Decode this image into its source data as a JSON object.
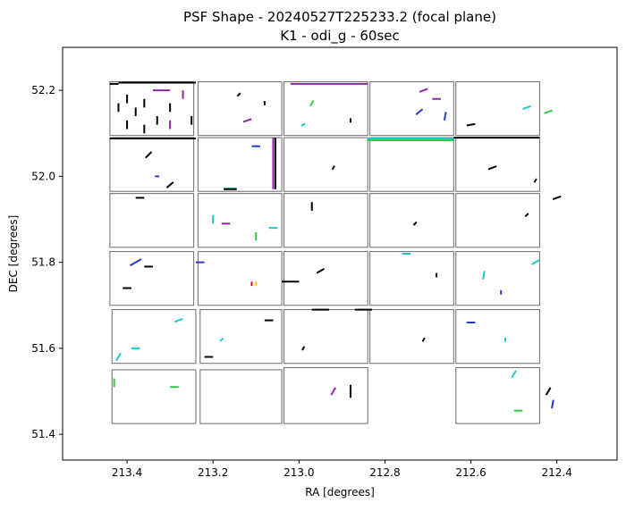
{
  "chart_data": {
    "type": "scatter",
    "title_line1": "PSF Shape - 20240527T225233.2 (focal plane)",
    "title_line2": "K1 - odi_g - 60sec",
    "xlabel": "RA [degrees]",
    "ylabel": "DEC [degrees]",
    "xlim": [
      213.55,
      212.26
    ],
    "ylim": [
      51.34,
      52.3
    ],
    "x_axis_inverted": true,
    "x_ticks": [
      213.4,
      213.2,
      213.0,
      212.8,
      212.6,
      212.4
    ],
    "x_tick_labels": [
      "213.4",
      "213.2",
      "213.0",
      "212.8",
      "212.6",
      "212.4"
    ],
    "y_ticks": [
      51.4,
      51.6,
      51.8,
      52.0,
      52.2
    ],
    "y_tick_labels": [
      "51.4",
      "51.6",
      "51.8",
      "52.0",
      "52.2"
    ],
    "grid": false,
    "legend": "none",
    "chips": [
      {
        "ra_min": 213.245,
        "ra_max": 213.44,
        "dec_min": 52.095,
        "dec_max": 52.22
      },
      {
        "ra_min": 213.04,
        "ra_max": 213.235,
        "dec_min": 52.095,
        "dec_max": 52.22
      },
      {
        "ra_min": 212.84,
        "ra_max": 213.035,
        "dec_min": 52.095,
        "dec_max": 52.22
      },
      {
        "ra_min": 212.64,
        "ra_max": 212.835,
        "dec_min": 52.095,
        "dec_max": 52.22
      },
      {
        "ra_min": 212.44,
        "ra_max": 212.635,
        "dec_min": 52.095,
        "dec_max": 52.22
      },
      {
        "ra_min": 213.245,
        "ra_max": 213.44,
        "dec_min": 51.965,
        "dec_max": 52.09
      },
      {
        "ra_min": 213.04,
        "ra_max": 213.235,
        "dec_min": 51.965,
        "dec_max": 52.09
      },
      {
        "ra_min": 212.84,
        "ra_max": 213.035,
        "dec_min": 51.965,
        "dec_max": 52.09
      },
      {
        "ra_min": 212.64,
        "ra_max": 212.835,
        "dec_min": 51.965,
        "dec_max": 52.09
      },
      {
        "ra_min": 212.44,
        "ra_max": 212.635,
        "dec_min": 51.965,
        "dec_max": 52.09
      },
      {
        "ra_min": 213.245,
        "ra_max": 213.44,
        "dec_min": 51.835,
        "dec_max": 51.96
      },
      {
        "ra_min": 213.04,
        "ra_max": 213.235,
        "dec_min": 51.835,
        "dec_max": 51.96
      },
      {
        "ra_min": 212.84,
        "ra_max": 213.035,
        "dec_min": 51.835,
        "dec_max": 51.96
      },
      {
        "ra_min": 212.64,
        "ra_max": 212.835,
        "dec_min": 51.835,
        "dec_max": 51.96
      },
      {
        "ra_min": 212.44,
        "ra_max": 212.635,
        "dec_min": 51.835,
        "dec_max": 51.96
      },
      {
        "ra_min": 213.245,
        "ra_max": 213.44,
        "dec_min": 51.7,
        "dec_max": 51.825
      },
      {
        "ra_min": 213.04,
        "ra_max": 213.235,
        "dec_min": 51.7,
        "dec_max": 51.825
      },
      {
        "ra_min": 212.84,
        "ra_max": 213.035,
        "dec_min": 51.7,
        "dec_max": 51.825
      },
      {
        "ra_min": 212.64,
        "ra_max": 212.835,
        "dec_min": 51.7,
        "dec_max": 51.825
      },
      {
        "ra_min": 212.44,
        "ra_max": 212.635,
        "dec_min": 51.7,
        "dec_max": 51.825
      },
      {
        "ra_min": 213.24,
        "ra_max": 213.435,
        "dec_min": 51.565,
        "dec_max": 51.69
      },
      {
        "ra_min": 213.04,
        "ra_max": 213.23,
        "dec_min": 51.565,
        "dec_max": 51.69
      },
      {
        "ra_min": 212.84,
        "ra_max": 213.035,
        "dec_min": 51.565,
        "dec_max": 51.69
      },
      {
        "ra_min": 212.64,
        "ra_max": 212.835,
        "dec_min": 51.565,
        "dec_max": 51.69
      },
      {
        "ra_min": 212.44,
        "ra_max": 212.635,
        "dec_min": 51.565,
        "dec_max": 51.69
      },
      {
        "ra_min": 213.24,
        "ra_max": 213.435,
        "dec_min": 51.425,
        "dec_max": 51.55
      },
      {
        "ra_min": 213.04,
        "ra_max": 213.23,
        "dec_min": 51.425,
        "dec_max": 51.55
      },
      {
        "ra_min": 212.84,
        "ra_max": 213.035,
        "dec_min": 51.425,
        "dec_max": 51.555
      },
      {
        "ra_min": 212.44,
        "ra_max": 212.635,
        "dec_min": 51.425,
        "dec_max": 51.555
      }
    ],
    "segments": [
      {
        "ra": 213.43,
        "dec": 52.215,
        "len": 0.02,
        "angle": 0,
        "color": "#000000"
      },
      {
        "ra": 213.33,
        "dec": 52.218,
        "len": 0.18,
        "angle": 0,
        "color": "#000000"
      },
      {
        "ra": 213.42,
        "dec": 52.16,
        "len": 0.02,
        "angle": 90,
        "color": "#000000"
      },
      {
        "ra": 213.4,
        "dec": 52.18,
        "len": 0.02,
        "angle": 90,
        "color": "#000000"
      },
      {
        "ra": 213.38,
        "dec": 52.15,
        "len": 0.02,
        "angle": 90,
        "color": "#000000"
      },
      {
        "ra": 213.36,
        "dec": 52.17,
        "len": 0.02,
        "angle": 90,
        "color": "#000000"
      },
      {
        "ra": 213.33,
        "dec": 52.13,
        "len": 0.02,
        "angle": 90,
        "color": "#000000"
      },
      {
        "ra": 213.3,
        "dec": 52.16,
        "len": 0.02,
        "angle": 90,
        "color": "#000000"
      },
      {
        "ra": 213.27,
        "dec": 52.19,
        "len": 0.02,
        "angle": 90,
        "color": "#8e24aa"
      },
      {
        "ra": 213.32,
        "dec": 52.2,
        "len": 0.04,
        "angle": 0,
        "color": "#8e24aa"
      },
      {
        "ra": 213.4,
        "dec": 52.12,
        "len": 0.02,
        "angle": 90,
        "color": "#000000"
      },
      {
        "ra": 213.36,
        "dec": 52.11,
        "len": 0.02,
        "angle": 90,
        "color": "#000000"
      },
      {
        "ra": 213.3,
        "dec": 52.12,
        "len": 0.02,
        "angle": 90,
        "color": "#8e24aa"
      },
      {
        "ra": 213.25,
        "dec": 52.13,
        "len": 0.02,
        "angle": 90,
        "color": "#000000"
      },
      {
        "ra": 213.34,
        "dec": 52.088,
        "len": 0.2,
        "angle": 0,
        "color": "#000000"
      },
      {
        "ra": 213.12,
        "dec": 52.13,
        "len": 0.02,
        "angle": 20,
        "color": "#8e24aa"
      },
      {
        "ra": 213.08,
        "dec": 52.17,
        "len": 0.01,
        "angle": 90,
        "color": "#000000"
      },
      {
        "ra": 213.14,
        "dec": 52.19,
        "len": 0.01,
        "angle": 45,
        "color": "#000000"
      },
      {
        "ra": 212.93,
        "dec": 52.215,
        "len": 0.18,
        "angle": 0,
        "color": "#8e24aa"
      },
      {
        "ra": 212.97,
        "dec": 52.17,
        "len": 0.015,
        "angle": 60,
        "color": "#2ecc40"
      },
      {
        "ra": 212.88,
        "dec": 52.13,
        "len": 0.01,
        "angle": 90,
        "color": "#000000"
      },
      {
        "ra": 212.99,
        "dec": 52.12,
        "len": 0.01,
        "angle": 30,
        "color": "#1ec8c8"
      },
      {
        "ra": 212.71,
        "dec": 52.2,
        "len": 0.02,
        "angle": 20,
        "color": "#8e24aa"
      },
      {
        "ra": 212.68,
        "dec": 52.18,
        "len": 0.02,
        "angle": 0,
        "color": "#8e24aa"
      },
      {
        "ra": 212.72,
        "dec": 52.15,
        "len": 0.02,
        "angle": 40,
        "color": "#2838c8"
      },
      {
        "ra": 212.66,
        "dec": 52.14,
        "len": 0.02,
        "angle": 80,
        "color": "#2838c8"
      },
      {
        "ra": 212.6,
        "dec": 52.12,
        "len": 0.02,
        "angle": 10,
        "color": "#000000"
      },
      {
        "ra": 212.47,
        "dec": 52.16,
        "len": 0.02,
        "angle": 20,
        "color": "#1ec8c8"
      },
      {
        "ra": 212.42,
        "dec": 52.15,
        "len": 0.02,
        "angle": 20,
        "color": "#2ecc40"
      },
      {
        "ra": 212.54,
        "dec": 52.09,
        "len": 0.2,
        "angle": 0,
        "color": "#000000"
      },
      {
        "ra": 212.74,
        "dec": 52.088,
        "len": 0.2,
        "angle": 0,
        "color": "#1ec8c8"
      },
      {
        "ra": 212.74,
        "dec": 52.084,
        "len": 0.2,
        "angle": 0,
        "color": "#2ecc40"
      },
      {
        "ra": 213.06,
        "dec": 52.03,
        "len": 0.12,
        "angle": 90,
        "color": "#8e24aa"
      },
      {
        "ra": 213.055,
        "dec": 52.03,
        "len": 0.12,
        "angle": 90,
        "color": "#000000"
      },
      {
        "ra": 213.16,
        "dec": 51.972,
        "len": 0.03,
        "angle": 0,
        "color": "#1ec8c8"
      },
      {
        "ra": 213.16,
        "dec": 51.97,
        "len": 0.03,
        "angle": 0,
        "color": "#000000"
      },
      {
        "ra": 213.1,
        "dec": 52.07,
        "len": 0.02,
        "angle": 0,
        "color": "#2838c8"
      },
      {
        "ra": 213.35,
        "dec": 52.05,
        "len": 0.02,
        "angle": 45,
        "color": "#000000"
      },
      {
        "ra": 213.33,
        "dec": 52.0,
        "len": 0.01,
        "angle": 0,
        "color": "#2838c8"
      },
      {
        "ra": 213.3,
        "dec": 51.98,
        "len": 0.02,
        "angle": 40,
        "color": "#000000"
      },
      {
        "ra": 212.92,
        "dec": 52.02,
        "len": 0.01,
        "angle": 60,
        "color": "#000000"
      },
      {
        "ra": 212.55,
        "dec": 52.02,
        "len": 0.02,
        "angle": 20,
        "color": "#000000"
      },
      {
        "ra": 212.45,
        "dec": 51.99,
        "len": 0.01,
        "angle": 60,
        "color": "#000000"
      },
      {
        "ra": 213.37,
        "dec": 51.95,
        "len": 0.02,
        "angle": 0,
        "color": "#000000"
      },
      {
        "ra": 213.2,
        "dec": 51.9,
        "len": 0.02,
        "angle": 90,
        "color": "#1ec8c8"
      },
      {
        "ra": 213.17,
        "dec": 51.89,
        "len": 0.02,
        "angle": 0,
        "color": "#8e24aa"
      },
      {
        "ra": 213.1,
        "dec": 51.86,
        "len": 0.02,
        "angle": 90,
        "color": "#2ecc40"
      },
      {
        "ra": 213.06,
        "dec": 51.88,
        "len": 0.02,
        "angle": 0,
        "color": "#1ec8c8"
      },
      {
        "ra": 212.97,
        "dec": 51.93,
        "len": 0.02,
        "angle": 90,
        "color": "#000000"
      },
      {
        "ra": 212.73,
        "dec": 51.89,
        "len": 0.01,
        "angle": 45,
        "color": "#000000"
      },
      {
        "ra": 212.47,
        "dec": 51.91,
        "len": 0.01,
        "angle": 45,
        "color": "#000000"
      },
      {
        "ra": 212.4,
        "dec": 51.95,
        "len": 0.02,
        "angle": 20,
        "color": "#000000"
      },
      {
        "ra": 213.38,
        "dec": 51.8,
        "len": 0.03,
        "angle": 30,
        "color": "#2838c8"
      },
      {
        "ra": 213.35,
        "dec": 51.79,
        "len": 0.02,
        "angle": 0,
        "color": "#000000"
      },
      {
        "ra": 213.4,
        "dec": 51.74,
        "len": 0.02,
        "angle": 0,
        "color": "#000000"
      },
      {
        "ra": 213.23,
        "dec": 51.8,
        "len": 0.02,
        "angle": 0,
        "color": "#2838c8"
      },
      {
        "ra": 213.11,
        "dec": 51.75,
        "len": 0.01,
        "angle": 90,
        "color": "#e01010"
      },
      {
        "ra": 213.1,
        "dec": 51.75,
        "len": 0.01,
        "angle": 90,
        "color": "#f0d000"
      },
      {
        "ra": 213.02,
        "dec": 51.755,
        "len": 0.04,
        "angle": 0,
        "color": "#000000"
      },
      {
        "ra": 212.95,
        "dec": 51.78,
        "len": 0.02,
        "angle": 30,
        "color": "#000000"
      },
      {
        "ra": 212.75,
        "dec": 51.82,
        "len": 0.02,
        "angle": 0,
        "color": "#1ec8c8"
      },
      {
        "ra": 212.68,
        "dec": 51.77,
        "len": 0.01,
        "angle": 90,
        "color": "#000000"
      },
      {
        "ra": 212.57,
        "dec": 51.77,
        "len": 0.02,
        "angle": 80,
        "color": "#1ec8c8"
      },
      {
        "ra": 212.45,
        "dec": 51.8,
        "len": 0.02,
        "angle": 30,
        "color": "#1ec8c8"
      },
      {
        "ra": 212.53,
        "dec": 51.73,
        "len": 0.01,
        "angle": 90,
        "color": "#2838c8"
      },
      {
        "ra": 212.95,
        "dec": 51.69,
        "len": 0.04,
        "angle": 0,
        "color": "#000000"
      },
      {
        "ra": 212.85,
        "dec": 51.69,
        "len": 0.04,
        "angle": 0,
        "color": "#000000"
      },
      {
        "ra": 213.07,
        "dec": 51.665,
        "len": 0.02,
        "angle": 0,
        "color": "#000000"
      },
      {
        "ra": 213.28,
        "dec": 51.665,
        "len": 0.02,
        "angle": 20,
        "color": "#1ec8c8"
      },
      {
        "ra": 213.38,
        "dec": 51.6,
        "len": 0.02,
        "angle": 0,
        "color": "#1ec8c8"
      },
      {
        "ra": 213.42,
        "dec": 51.58,
        "len": 0.02,
        "angle": 60,
        "color": "#1ec8c8"
      },
      {
        "ra": 213.18,
        "dec": 51.62,
        "len": 0.01,
        "angle": 45,
        "color": "#1ec8c8"
      },
      {
        "ra": 213.21,
        "dec": 51.58,
        "len": 0.02,
        "angle": 0,
        "color": "#000000"
      },
      {
        "ra": 212.99,
        "dec": 51.6,
        "len": 0.01,
        "angle": 60,
        "color": "#000000"
      },
      {
        "ra": 212.71,
        "dec": 51.62,
        "len": 0.01,
        "angle": 60,
        "color": "#000000"
      },
      {
        "ra": 212.6,
        "dec": 51.66,
        "len": 0.02,
        "angle": 0,
        "color": "#2838c8"
      },
      {
        "ra": 212.52,
        "dec": 51.62,
        "len": 0.01,
        "angle": 90,
        "color": "#1ec8c8"
      },
      {
        "ra": 213.29,
        "dec": 51.51,
        "len": 0.02,
        "angle": 0,
        "color": "#2ecc40"
      },
      {
        "ra": 213.43,
        "dec": 51.52,
        "len": 0.02,
        "angle": 90,
        "color": "#2ecc40"
      },
      {
        "ra": 212.92,
        "dec": 51.5,
        "len": 0.02,
        "angle": 60,
        "color": "#8e24aa"
      },
      {
        "ra": 212.88,
        "dec": 51.5,
        "len": 0.03,
        "angle": 90,
        "color": "#000000"
      },
      {
        "ra": 212.49,
        "dec": 51.455,
        "len": 0.02,
        "angle": 0,
        "color": "#2ecc40"
      },
      {
        "ra": 212.41,
        "dec": 51.47,
        "len": 0.02,
        "angle": 80,
        "color": "#2838c8"
      },
      {
        "ra": 212.5,
        "dec": 51.54,
        "len": 0.02,
        "angle": 60,
        "color": "#1ec8c8"
      },
      {
        "ra": 212.42,
        "dec": 51.5,
        "len": 0.02,
        "angle": 60,
        "color": "#000000"
      }
    ]
  }
}
